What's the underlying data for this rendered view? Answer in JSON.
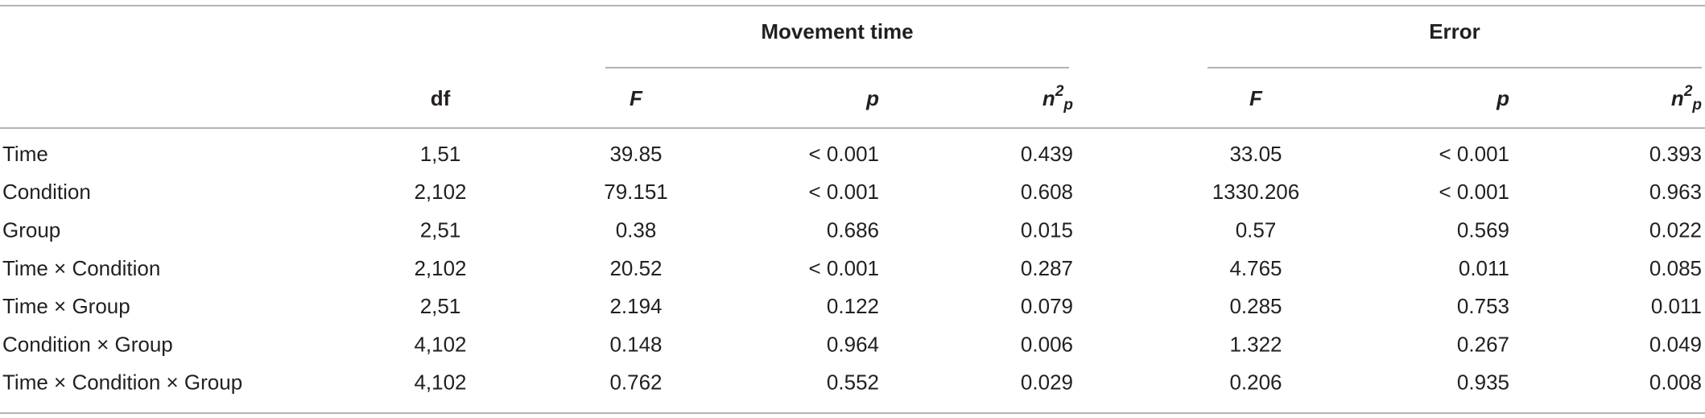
{
  "table": {
    "groups": [
      "Movement time",
      "Error"
    ],
    "header": [
      "df",
      "F",
      "p",
      {
        "base": "n",
        "sup": "2",
        "sub": "p"
      },
      "F",
      "p",
      {
        "base": "n",
        "sup": "2",
        "sub": "p"
      }
    ],
    "rows": [
      [
        "Time",
        "1,51",
        "39.85",
        "< 0.001",
        "0.439",
        "33.05",
        "< 0.001",
        "0.393"
      ],
      [
        "Condition",
        "2,102",
        "79.151",
        "< 0.001",
        "0.608",
        "1330.206",
        "< 0.001",
        "0.963"
      ],
      [
        "Group",
        "2,51",
        "0.38",
        "0.686",
        "0.015",
        "0.57",
        "0.569",
        "0.022"
      ],
      [
        "Time × Condition",
        "2,102",
        "20.52",
        "< 0.001",
        "0.287",
        "4.765",
        "0.011",
        "0.085"
      ],
      [
        "Time × Group",
        "2,51",
        "2.194",
        "0.122",
        "0.079",
        "0.285",
        "0.753",
        "0.011"
      ],
      [
        "Condition × Group",
        "4,102",
        "0.148",
        "0.964",
        "0.006",
        "1.322",
        "0.267",
        "0.049"
      ],
      [
        "Time × Condition × Group",
        "4,102",
        "0.762",
        "0.552",
        "0.029",
        "0.206",
        "0.935",
        "0.008"
      ]
    ]
  }
}
